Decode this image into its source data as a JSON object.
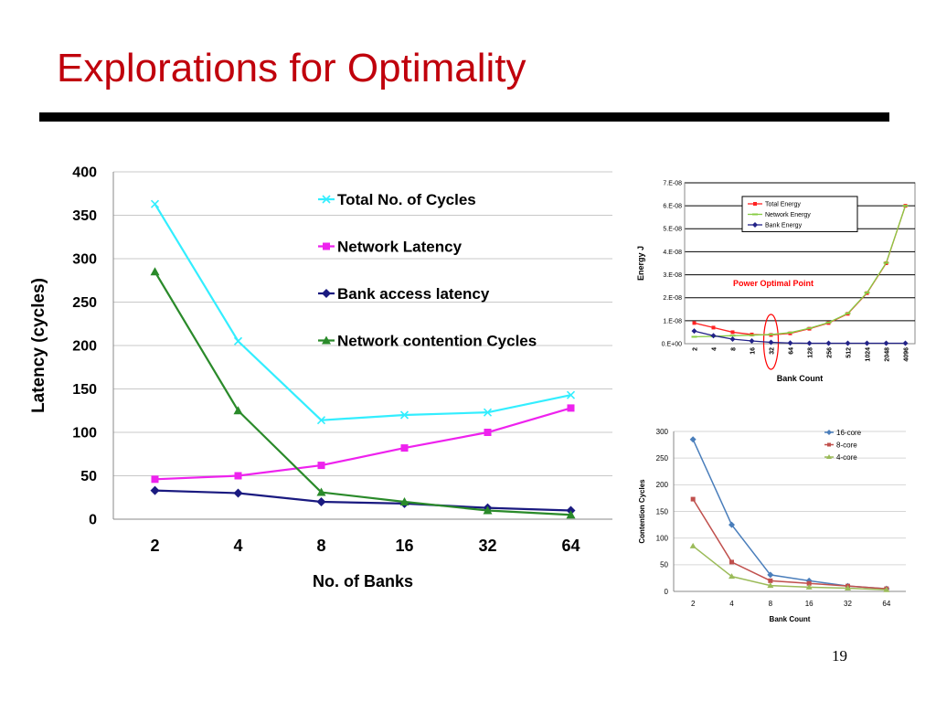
{
  "slide": {
    "title": "Explorations for Optimality",
    "page_number": "19"
  },
  "chart_data": [
    {
      "type": "line",
      "xlabel": "No. of Banks",
      "ylabel": "Latency (cycles)",
      "categories": [
        "2",
        "4",
        "8",
        "16",
        "32",
        "64"
      ],
      "ylim": [
        0,
        400
      ],
      "yticks": [
        "0",
        "50",
        "100",
        "150",
        "200",
        "250",
        "300",
        "350",
        "400"
      ],
      "grid": true,
      "legend": "top-right",
      "series": [
        {
          "name": "Total No. of Cycles",
          "values": [
            363,
            205,
            114,
            120,
            123,
            143
          ],
          "color": "#33eeff",
          "marker": "x"
        },
        {
          "name": "Network Latency",
          "values": [
            46,
            50,
            62,
            82,
            100,
            128
          ],
          "color": "#ee22ee",
          "marker": "square"
        },
        {
          "name": "Bank access latency",
          "values": [
            33,
            30,
            20,
            18,
            13,
            10
          ],
          "color": "#1a1a80",
          "marker": "diamond"
        },
        {
          "name": "Network contention Cycles",
          "values": [
            285,
            125,
            31,
            20,
            10,
            5
          ],
          "color": "#2a8a2a",
          "marker": "triangle"
        }
      ]
    },
    {
      "type": "line",
      "xlabel": "Bank Count",
      "ylabel": "Energy J",
      "categories": [
        "2",
        "4",
        "8",
        "16",
        "32",
        "64",
        "128",
        "256",
        "512",
        "1024",
        "2048",
        "4096"
      ],
      "ylim": [
        0,
        7e-08
      ],
      "yticks": [
        "0.E+00",
        "1.E-08",
        "2.E-08",
        "3.E-08",
        "4.E-08",
        "5.E-08",
        "6.E-08",
        "7.E-08"
      ],
      "grid": true,
      "legend": "top-left",
      "annotation": "Power Optimal Point",
      "highlight_category": "32",
      "series": [
        {
          "name": "Total Energy",
          "values": [
            9e-09,
            7e-09,
            5e-09,
            4e-09,
            3.8e-09,
            4.5e-09,
            6.5e-09,
            9e-09,
            1.3e-08,
            2.2e-08,
            3.5e-08,
            6e-08
          ],
          "color": "#ff2222",
          "marker": "square"
        },
        {
          "name": "Network Energy",
          "values": [
            3e-09,
            3.2e-09,
            3.5e-09,
            3.7e-09,
            4e-09,
            4.8e-09,
            6.7e-09,
            9.2e-09,
            1.32e-08,
            2.22e-08,
            3.52e-08,
            6e-08
          ],
          "color": "#88cc44",
          "marker": "dash"
        },
        {
          "name": "Bank Energy",
          "values": [
            5.5e-09,
            3.5e-09,
            2e-09,
            1.2e-09,
            6e-10,
            3e-10,
            2e-10,
            2e-10,
            2e-10,
            2e-10,
            2e-10,
            2e-10
          ],
          "color": "#222288",
          "marker": "diamond"
        }
      ]
    },
    {
      "type": "line",
      "xlabel": "Bank Count",
      "ylabel": "Contention Cycles",
      "categories": [
        "2",
        "4",
        "8",
        "16",
        "32",
        "64"
      ],
      "ylim": [
        0,
        300
      ],
      "yticks": [
        "0",
        "50",
        "100",
        "150",
        "200",
        "250",
        "300"
      ],
      "grid": true,
      "legend": "top-right",
      "series": [
        {
          "name": "16-core",
          "values": [
            285,
            125,
            31,
            20,
            10,
            5
          ],
          "color": "#4a7ebb",
          "marker": "diamond"
        },
        {
          "name": "8-core",
          "values": [
            173,
            55,
            20,
            15,
            10,
            5
          ],
          "color": "#c0504d",
          "marker": "square"
        },
        {
          "name": "4-core",
          "values": [
            85,
            28,
            11,
            8,
            6,
            3
          ],
          "color": "#9bbb59",
          "marker": "triangle"
        }
      ]
    }
  ]
}
